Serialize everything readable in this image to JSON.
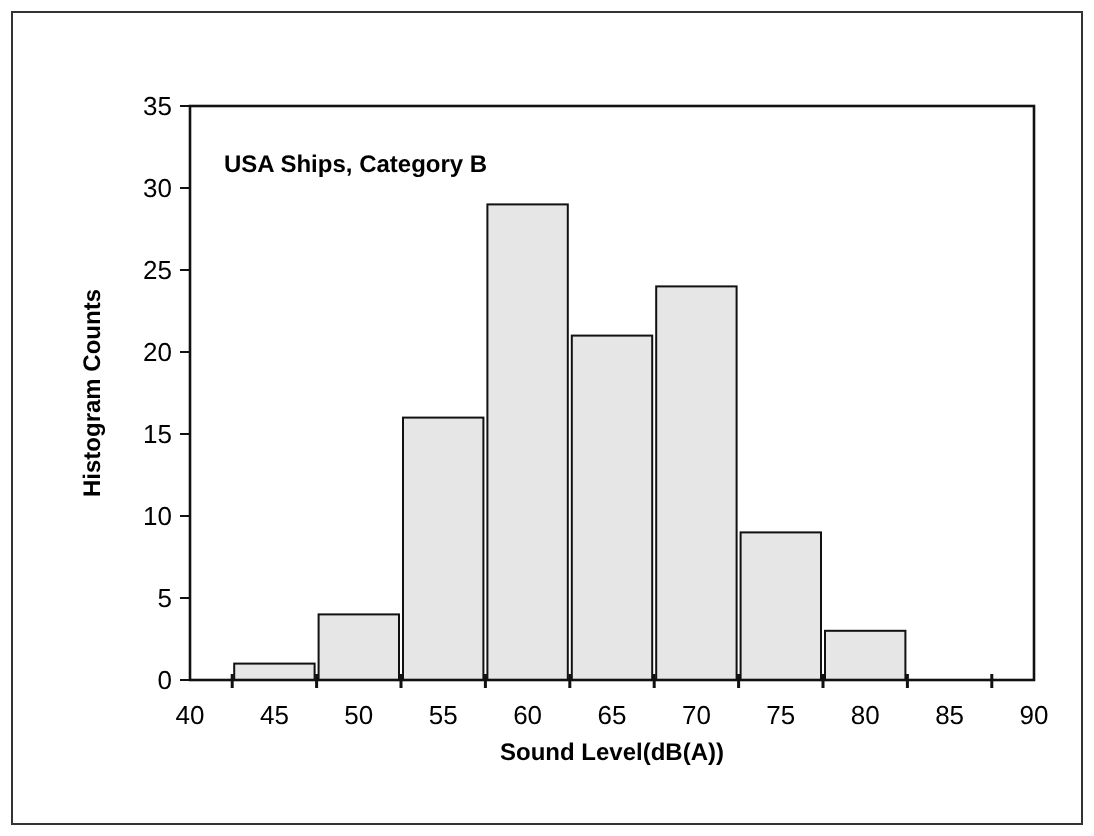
{
  "chart_data": {
    "type": "histogram",
    "xlabel": "Sound Level(dB(A))",
    "ylabel": "Histogram Counts",
    "annotations": [
      "USA Ships, Category B"
    ],
    "bins": [
      42.5,
      47.5,
      52.5,
      57.5,
      62.5,
      67.5,
      72.5,
      77.5,
      82.5
    ],
    "values": [
      1,
      4,
      16,
      29,
      21,
      24,
      9,
      3
    ],
    "color": "#e6e6e6",
    "xlim": [
      40,
      90
    ],
    "xticks": [
      40,
      45,
      50,
      55,
      60,
      65,
      70,
      75,
      80,
      85,
      90,
      {
        "value": 42.5,
        "label": null
      },
      {
        "value": 47.5,
        "label": null
      },
      {
        "value": 52.5,
        "label": null
      },
      {
        "value": 57.5,
        "label": null
      },
      {
        "value": 62.5,
        "label": null
      },
      {
        "value": 67.5,
        "label": null
      },
      {
        "value": 72.5,
        "label": null
      },
      {
        "value": 77.5,
        "label": null
      },
      {
        "value": 82.5,
        "label": null
      },
      {
        "value": 87.5,
        "label": null
      }
    ],
    "ylim": [
      0,
      35
    ],
    "yticks": [
      0,
      5,
      10,
      15,
      20,
      25,
      30,
      35
    ],
    "grid": false
  }
}
